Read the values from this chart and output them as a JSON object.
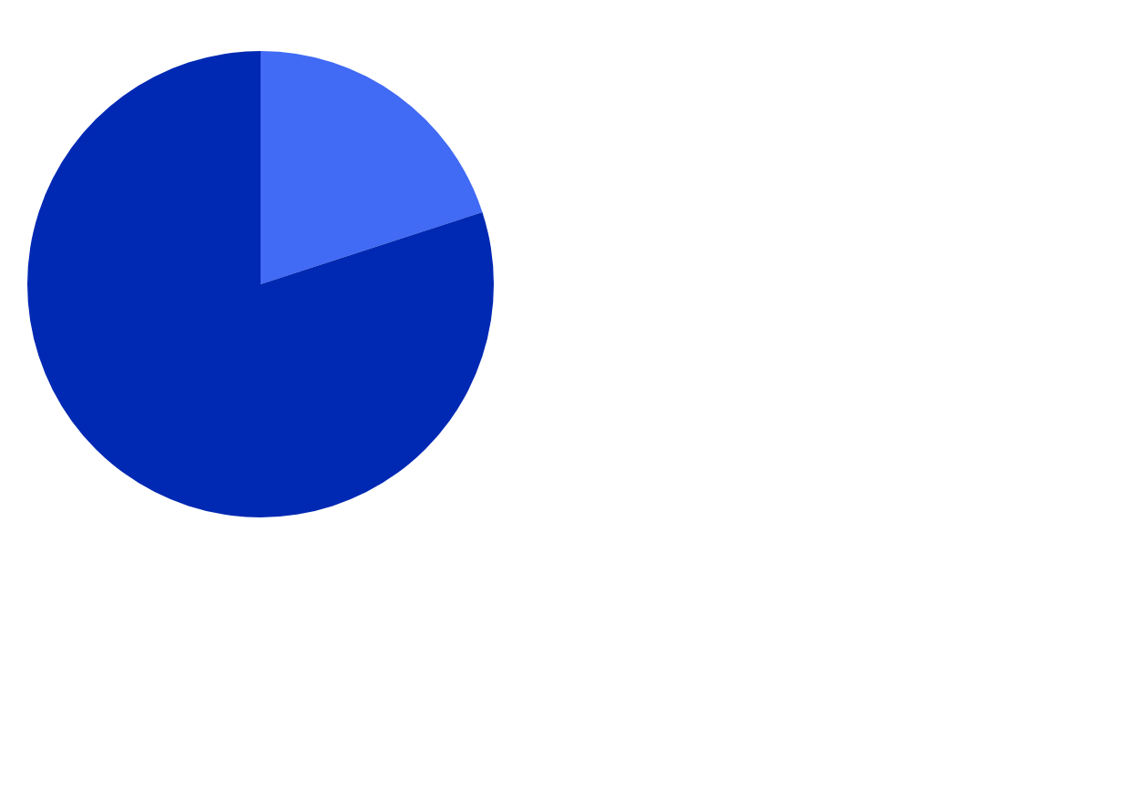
{
  "chart_data": {
    "type": "pie",
    "categories": [
      null,
      null
    ],
    "values": [
      20,
      80
    ],
    "colors": [
      "#416af5",
      "#0029b3"
    ],
    "legend": false
  }
}
